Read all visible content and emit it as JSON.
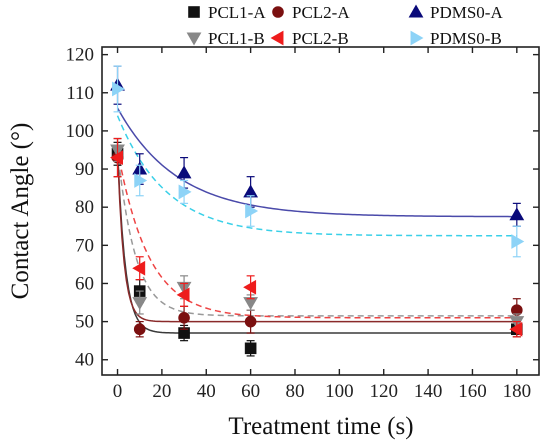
{
  "chart_data": {
    "type": "scatter",
    "title": "",
    "xlabel": "Treatment time (s)",
    "ylabel": "Contact Angle (°)",
    "xlim": [
      -7,
      190
    ],
    "ylim": [
      36,
      122
    ],
    "xticks": [
      0,
      20,
      40,
      60,
      80,
      100,
      120,
      140,
      160,
      180
    ],
    "yticks": [
      40,
      50,
      60,
      70,
      80,
      90,
      100,
      110,
      120
    ],
    "legend_position": "top",
    "series": [
      {
        "name": "PCL1-A",
        "marker": "square",
        "color": "#111111",
        "x": [
          0,
          10,
          30,
          60,
          180
        ],
        "y": [
          94,
          58,
          47,
          43,
          48
        ],
        "err": [
          3,
          3,
          2,
          2,
          2
        ],
        "fit": {
          "style": "solid",
          "color": "#3a3a3a",
          "y_inf": 47,
          "y0": 95,
          "tau": 3.5
        }
      },
      {
        "name": "PCL2-A",
        "marker": "circle",
        "color": "#7b1010",
        "x": [
          0,
          10,
          30,
          60,
          180
        ],
        "y": [
          93,
          48,
          51,
          50,
          53
        ],
        "err": [
          5,
          2,
          3,
          3,
          3
        ],
        "fit": {
          "style": "solid",
          "color": "#8a2a2a",
          "y_inf": 50,
          "y0": 95,
          "tau": 2.8
        }
      },
      {
        "name": "PDMS0-A",
        "marker": "triangle-up",
        "color": "#0a0a7a",
        "x": [
          0,
          10,
          30,
          60,
          180
        ],
        "y": [
          112,
          90,
          89,
          84,
          78
        ],
        "err": [
          5,
          4,
          4,
          4,
          3
        ],
        "fit": {
          "style": "solid",
          "color": "#4a4aaa",
          "y_inf": 77.5,
          "y0": 106,
          "tau": 27
        }
      },
      {
        "name": "PCL1-B",
        "marker": "triangle-down",
        "color": "#888888",
        "x": [
          0,
          10,
          30,
          60,
          180
        ],
        "y": [
          95,
          55,
          59,
          55,
          50
        ],
        "err": [
          3,
          3,
          3,
          2,
          2
        ],
        "fit": {
          "style": "dashed",
          "color": "#999999",
          "y_inf": 51.5,
          "y0": 95,
          "tau": 8
        }
      },
      {
        "name": "PCL2-B",
        "marker": "triangle-left",
        "color": "#ee1c1c",
        "x": [
          0,
          10,
          30,
          60,
          180
        ],
        "y": [
          93,
          64,
          57,
          59,
          48
        ],
        "err": [
          5,
          3,
          3,
          3,
          2
        ],
        "fit": {
          "style": "dashed",
          "color": "#ee4444",
          "y_inf": 51,
          "y0": 95,
          "tau": 14
        }
      },
      {
        "name": "PDMS0-B",
        "marker": "triangle-right",
        "color": "#8dd3f7",
        "x": [
          0,
          10,
          30,
          60,
          180
        ],
        "y": [
          111,
          87,
          84,
          79,
          71
        ],
        "err": [
          6,
          4,
          3,
          4,
          4
        ],
        "fit": {
          "style": "dashed",
          "color": "#3ad0e8",
          "y_inf": 72.5,
          "y0": 104,
          "tau": 22
        }
      }
    ]
  }
}
